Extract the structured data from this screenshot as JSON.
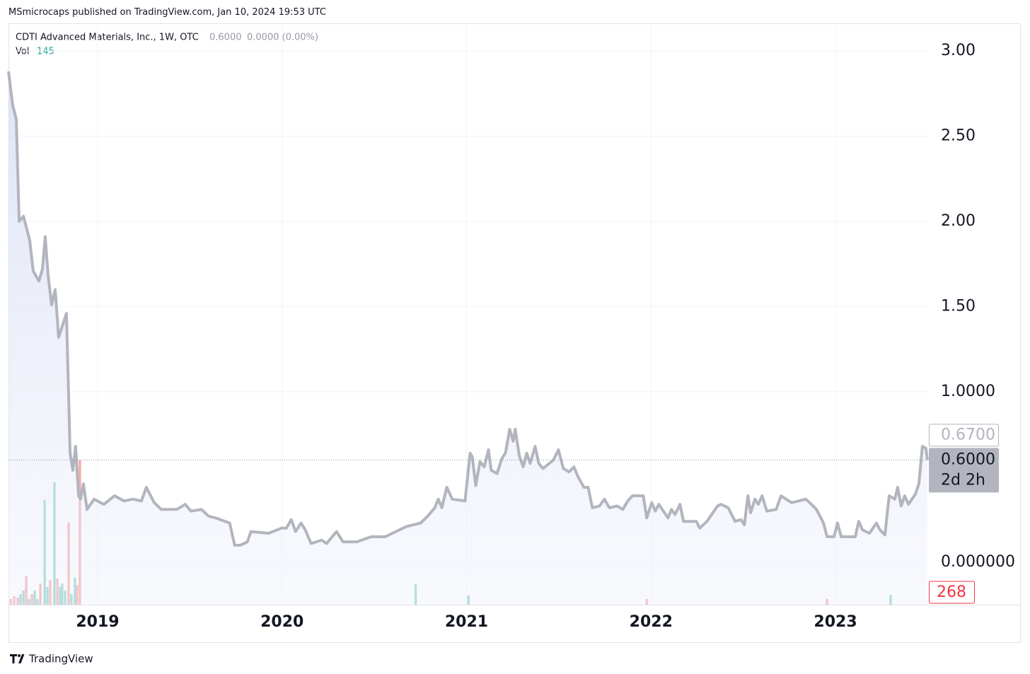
{
  "header": {
    "publisher": "MSmicrocaps published on TradingView.com, Jan 10, 2024 19:53 UTC",
    "footer": "TradingView"
  },
  "chart_data": {
    "type": "line",
    "title": "CDTI Advanced Materials, Inc., 1W, OTC",
    "legend": {
      "price": "0.6000",
      "change": "0.0000 (0.00%)",
      "volume_name": "Vol",
      "volume_value": 145
    },
    "x": [
      2018.517,
      2018.54,
      2018.559,
      2018.575,
      2018.598,
      2018.632,
      2018.651,
      2018.682,
      2018.701,
      2018.716,
      2018.732,
      2018.751,
      2018.77,
      2018.789,
      2018.831,
      2018.843,
      2018.851,
      2018.866,
      2018.881,
      2018.897,
      2018.908,
      2018.923,
      2018.943,
      2018.981,
      2019.034,
      2019.092,
      2019.142,
      2019.192,
      2019.238,
      2019.264,
      2019.307,
      2019.345,
      2019.429,
      2019.475,
      2019.506,
      2019.563,
      2019.602,
      2019.64,
      2019.716,
      2019.743,
      2019.774,
      2019.812,
      2019.831,
      2019.927,
      2019.996,
      2020.023,
      2020.05,
      2020.073,
      2020.103,
      2020.126,
      2020.157,
      2020.215,
      2020.241,
      2020.295,
      2020.33,
      2020.406,
      2020.483,
      2020.559,
      2020.598,
      2020.674,
      2020.751,
      2020.789,
      2020.828,
      2020.847,
      2020.866,
      2020.893,
      2020.923,
      2020.992,
      2021.019,
      2021.031,
      2021.05,
      2021.073,
      2021.096,
      2021.119,
      2021.134,
      2021.165,
      2021.192,
      2021.211,
      2021.234,
      2021.253,
      2021.264,
      2021.287,
      2021.307,
      2021.326,
      2021.345,
      2021.372,
      2021.391,
      2021.414,
      2021.471,
      2021.498,
      2021.525,
      2021.556,
      2021.582,
      2021.605,
      2021.636,
      2021.659,
      2021.682,
      2021.72,
      2021.747,
      2021.774,
      2021.816,
      2021.847,
      2021.874,
      2021.9,
      2021.958,
      2021.977,
      2022.004,
      2022.023,
      2022.042,
      2022.092,
      2022.111,
      2022.13,
      2022.157,
      2022.176,
      2022.245,
      2022.264,
      2022.303,
      2022.36,
      2022.379,
      2022.418,
      2022.456,
      2022.487,
      2022.506,
      2022.525,
      2022.54,
      2022.563,
      2022.582,
      2022.602,
      2022.628,
      2022.678,
      2022.705,
      2022.732,
      2022.762,
      2022.839,
      2022.87,
      2022.897,
      2022.935,
      2022.954,
      2022.992,
      2023.011,
      2023.031,
      2023.107,
      2023.126,
      2023.146,
      2023.184,
      2023.222,
      2023.241,
      2023.268,
      2023.291,
      2023.322,
      2023.337,
      2023.356,
      2023.375,
      2023.395,
      2023.433,
      2023.452,
      2023.471,
      2023.49,
      2023.498
    ],
    "series": [
      {
        "color": "#b2b5be",
        "values": [
          2.88,
          2.68,
          2.6,
          2.0,
          2.03,
          1.89,
          1.71,
          1.65,
          1.72,
          1.91,
          1.68,
          1.51,
          1.6,
          1.32,
          1.46,
          0.98,
          0.64,
          0.54,
          0.68,
          0.39,
          0.37,
          0.46,
          0.31,
          0.37,
          0.34,
          0.39,
          0.36,
          0.37,
          0.36,
          0.44,
          0.35,
          0.31,
          0.31,
          0.34,
          0.3,
          0.31,
          0.27,
          0.26,
          0.23,
          0.1,
          0.1,
          0.12,
          0.18,
          0.17,
          0.2,
          0.2,
          0.25,
          0.18,
          0.23,
          0.19,
          0.11,
          0.13,
          0.11,
          0.18,
          0.12,
          0.12,
          0.15,
          0.15,
          0.17,
          0.21,
          0.23,
          0.27,
          0.32,
          0.37,
          0.32,
          0.44,
          0.37,
          0.36,
          0.64,
          0.62,
          0.45,
          0.59,
          0.56,
          0.66,
          0.54,
          0.52,
          0.61,
          0.64,
          0.78,
          0.71,
          0.78,
          0.62,
          0.56,
          0.64,
          0.58,
          0.68,
          0.58,
          0.55,
          0.6,
          0.66,
          0.55,
          0.53,
          0.56,
          0.5,
          0.44,
          0.44,
          0.32,
          0.33,
          0.37,
          0.32,
          0.33,
          0.31,
          0.36,
          0.39,
          0.39,
          0.26,
          0.35,
          0.3,
          0.34,
          0.26,
          0.31,
          0.28,
          0.34,
          0.24,
          0.24,
          0.2,
          0.24,
          0.33,
          0.34,
          0.32,
          0.24,
          0.25,
          0.22,
          0.39,
          0.29,
          0.37,
          0.34,
          0.39,
          0.3,
          0.31,
          0.39,
          0.37,
          0.35,
          0.37,
          0.34,
          0.31,
          0.23,
          0.15,
          0.15,
          0.23,
          0.15,
          0.15,
          0.24,
          0.19,
          0.17,
          0.23,
          0.19,
          0.16,
          0.39,
          0.37,
          0.44,
          0.33,
          0.39,
          0.34,
          0.4,
          0.46,
          0.68,
          0.67,
          0.6
        ]
      }
    ],
    "volume": {
      "x": [
        2018.529,
        2018.548,
        2018.567,
        2018.582,
        2018.598,
        2018.613,
        2018.628,
        2018.644,
        2018.659,
        2018.674,
        2018.69,
        2018.713,
        2018.728,
        2018.743,
        2018.766,
        2018.782,
        2018.797,
        2018.808,
        2018.824,
        2018.843,
        2018.858,
        2018.877,
        2018.889,
        2018.904,
        2020.724,
        2021.011,
        2021.977,
        2022.954,
        2023.299
      ],
      "values": [
        119,
        179,
        149,
        223,
        298,
        596,
        119,
        223,
        298,
        119,
        447,
        2204,
        372,
        521,
        2576,
        551,
        372,
        447,
        298,
        1727,
        223,
        566,
        417,
        3037,
        432,
        194,
        119,
        119,
        208
      ],
      "colors": [
        "#f7a9a7",
        "#f7a9a7",
        "#f7a9a7",
        "#8fd1ca",
        "#8fd1ca",
        "#f7a9a7",
        "#8fd1ca",
        "#f7a9a7",
        "#8fd1ca",
        "#8fd1ca",
        "#f7a9a7",
        "#8fd1ca",
        "#8fd1ca",
        "#f7a9a7",
        "#8fd1ca",
        "#f7a9a7",
        "#8fd1ca",
        "#8fd1ca",
        "#8fd1ca",
        "#f7a9a7",
        "#8fd1ca",
        "#8fd1ca",
        "#f7a9a7",
        "#f7a9a7",
        "#8fd1ca",
        "#8fd1ca",
        "#f7a9a7",
        "#f7a9a7",
        "#8fd1ca"
      ],
      "vlim": [
        0,
        12200
      ],
      "last_label": {
        "value": 268,
        "color": "#f23645"
      }
    },
    "xlim": [
      2018.517,
      2023.506
    ],
    "xticks": [
      2019,
      2020,
      2021,
      2022,
      2023
    ],
    "ylim": [
      -0.249,
      3.154
    ],
    "yticks": [
      {
        "value": 3,
        "label": "3.00"
      },
      {
        "value": 2.5,
        "label": "2.50"
      },
      {
        "value": 2,
        "label": "2.00"
      },
      {
        "value": 1.5,
        "label": "1.50"
      },
      {
        "value": 1,
        "label": "1.0000"
      },
      {
        "value": 0,
        "label": "0.000000"
      }
    ],
    "grid": true,
    "last_price": {
      "value": 0.6,
      "label": "0.6000",
      "countdown": "2d 2h"
    },
    "prev_close": {
      "value": 0.67,
      "label": "0.6700"
    }
  }
}
